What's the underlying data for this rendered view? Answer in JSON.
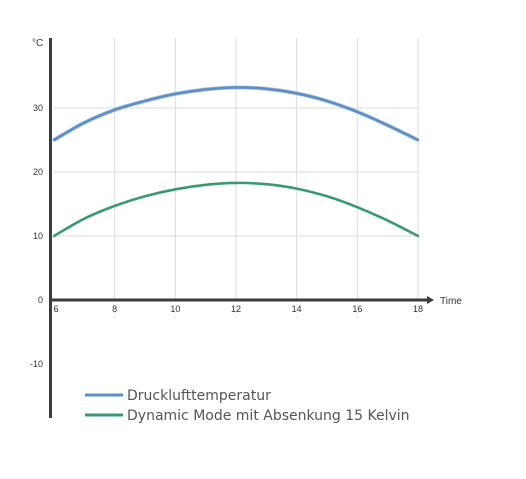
{
  "chart_data": {
    "type": "line",
    "title": "",
    "xlabel": "Time",
    "ylabel": "°C",
    "xlim": [
      6,
      18
    ],
    "ylim": [
      -10,
      40
    ],
    "x_ticks": [
      6,
      8,
      10,
      12,
      14,
      16,
      18
    ],
    "y_ticks": [
      -10,
      0,
      10,
      20,
      30
    ],
    "grid": true,
    "legend_position": "bottom-left",
    "series": [
      {
        "name": "Drucklufttemperatur",
        "color": "#5b8fc9",
        "x": [
          6,
          7,
          8,
          9,
          10,
          11,
          12,
          13,
          14,
          15,
          16,
          17,
          18
        ],
        "values": [
          25,
          27.7,
          29.7,
          31.1,
          32.2,
          32.9,
          33.2,
          33,
          32.3,
          31.1,
          29.4,
          27.3,
          25
        ]
      },
      {
        "name": "Dynamic Mode mit Absenkung 15 Kelvin",
        "color": "#3a9a6e",
        "x": [
          6,
          7,
          8,
          9,
          10,
          11,
          12,
          13,
          14,
          15,
          16,
          17,
          18
        ],
        "values": [
          10,
          12.7,
          14.7,
          16.2,
          17.3,
          18,
          18.3,
          18.1,
          17.4,
          16.2,
          14.5,
          12.4,
          10
        ]
      }
    ]
  }
}
